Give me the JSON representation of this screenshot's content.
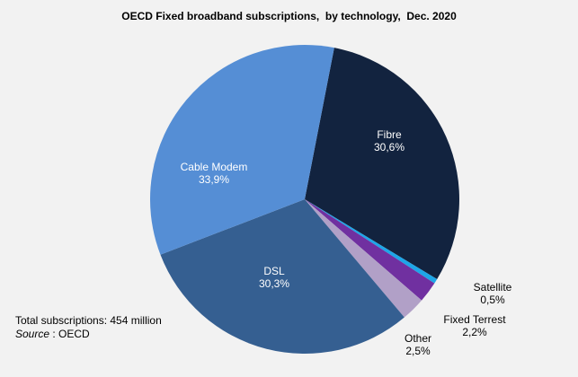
{
  "chart_data": {
    "type": "pie",
    "title": "OECD Fixed broadband subscriptions,  by technology,  Dec. 2020",
    "start_angle_deg": 11,
    "direction": "clockwise",
    "slices": [
      {
        "label": "Fibre",
        "value": 30.6,
        "value_label": "30,6%",
        "color": "#12233f",
        "label_color": "#ffffff",
        "label_pos": "inside"
      },
      {
        "label": "Satellite",
        "value": 0.5,
        "value_label": "0,5%",
        "color": "#1ea6e8",
        "label_color": "#000000",
        "label_pos": "outside"
      },
      {
        "label": "Fixed Terrest",
        "value": 2.2,
        "value_label": "2,2%",
        "color": "#7030a0",
        "label_color": "#000000",
        "label_pos": "outside"
      },
      {
        "label": "Other",
        "value": 2.5,
        "value_label": "2,5%",
        "color": "#b1a0c7",
        "label_color": "#000000",
        "label_pos": "outside"
      },
      {
        "label": "DSL",
        "value": 30.3,
        "value_label": "30,3%",
        "color": "#355f91",
        "label_color": "#ffffff",
        "label_pos": "inside"
      },
      {
        "label": "Cable Modem",
        "value": 33.9,
        "value_label": "33,9%",
        "color": "#558ed5",
        "label_color": "#ffffff",
        "label_pos": "inside"
      }
    ]
  },
  "notes": {
    "total": "Total subscriptions: 454 million",
    "source_label": "Source",
    "source_value": " : OECD"
  }
}
